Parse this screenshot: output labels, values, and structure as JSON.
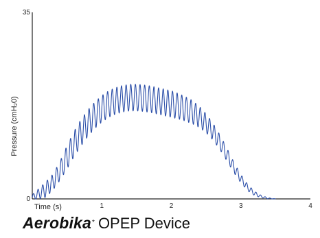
{
  "chart_data": {
    "type": "line",
    "xlabel": "Time (s)",
    "ylabel": "Pressure (cmH₂0)",
    "xlim": [
      0,
      4
    ],
    "ylim": [
      0,
      35
    ],
    "x_ticks": [
      "1",
      "2",
      "3",
      "4"
    ],
    "y_ticks": [
      "0",
      "35"
    ],
    "grid": false,
    "line_color": "#2b4ea8",
    "series": [
      {
        "x": [
          0.0,
          0.1,
          0.2,
          0.3,
          0.4,
          0.5,
          0.6,
          0.7,
          0.8,
          0.9,
          1.0,
          1.1,
          1.2,
          1.3,
          1.4,
          1.5,
          1.6,
          1.7,
          1.8,
          1.9,
          2.0,
          2.1,
          2.2,
          2.3,
          2.4,
          2.5,
          2.6,
          2.7,
          2.8,
          2.9,
          3.0,
          3.1,
          3.2,
          3.3,
          3.4,
          3.5
        ],
        "y": [
          0.3,
          1.0,
          1.8,
          3.2,
          5.3,
          7.8,
          10.3,
          12.4,
          14.2,
          15.7,
          16.9,
          17.8,
          18.4,
          18.8,
          19.0,
          19.0,
          18.9,
          18.7,
          18.4,
          18.1,
          17.8,
          17.4,
          16.9,
          16.3,
          15.4,
          14.2,
          12.6,
          10.6,
          8.3,
          5.9,
          3.8,
          2.1,
          1.0,
          0.4,
          0.1,
          0.0
        ]
      }
    ],
    "oscillation": {
      "frequency_hz": 15,
      "amplitude": [
        0.5,
        1.0,
        1.5,
        1.5,
        1.8,
        2.2,
        2.4,
        2.5,
        2.5,
        2.5,
        2.5,
        2.5,
        2.5,
        2.5,
        2.5,
        2.5,
        2.5,
        2.5,
        2.5,
        2.5,
        2.5,
        2.4,
        2.3,
        2.2,
        2.0,
        1.8,
        1.6,
        1.4,
        1.2,
        1.0,
        0.8,
        0.6,
        0.4,
        0.2,
        0.1,
        0.0
      ]
    }
  },
  "caption": {
    "brand": "Aerobika",
    "brand_mark": "*",
    "device": "OPEP Device"
  }
}
